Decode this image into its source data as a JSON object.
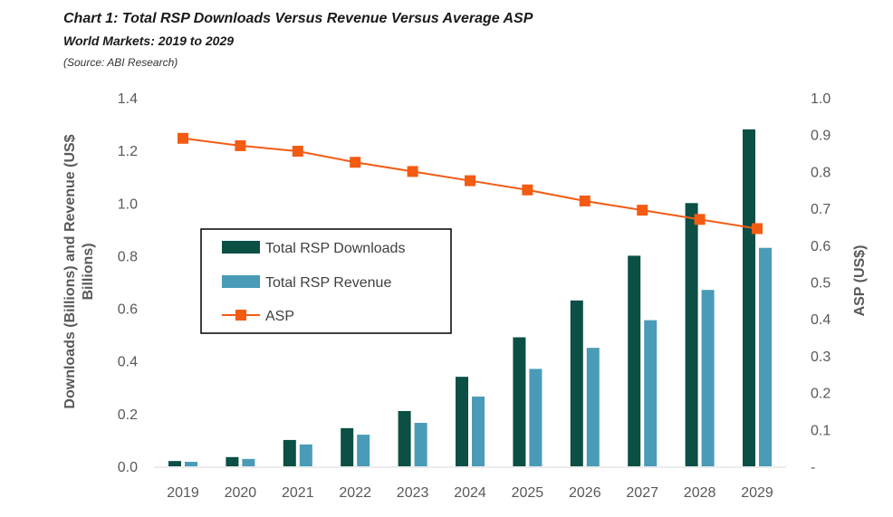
{
  "title": "Chart 1: Total RSP Downloads Versus Revenue Versus Average ASP",
  "subtitle": "World Markets: 2019 to 2029",
  "source": "(Source: ABI Research)",
  "chart_data": {
    "type": "bar",
    "categories": [
      "2019",
      "2020",
      "2021",
      "2022",
      "2023",
      "2024",
      "2025",
      "2026",
      "2027",
      "2028",
      "2029"
    ],
    "series": [
      {
        "name": "Total RSP Downloads",
        "type": "bar",
        "axis": "left",
        "color": "#0b4f45",
        "values": [
          0.02,
          0.035,
          0.1,
          0.145,
          0.21,
          0.34,
          0.49,
          0.63,
          0.8,
          1.0,
          1.28
        ]
      },
      {
        "name": "Total RSP Revenue",
        "type": "bar",
        "axis": "left",
        "color": "#4a9bb8",
        "values": [
          0.017,
          0.028,
          0.083,
          0.12,
          0.165,
          0.265,
          0.37,
          0.45,
          0.555,
          0.67,
          0.83
        ]
      },
      {
        "name": "ASP",
        "type": "line",
        "axis": "right",
        "color": "#f35b13",
        "values": [
          0.89,
          0.87,
          0.855,
          0.825,
          0.8,
          0.775,
          0.75,
          0.72,
          0.695,
          0.67,
          0.645
        ]
      }
    ],
    "ylabel": "Downloads (Billions) and Revenue (US$ Billions)",
    "y2label": "ASP (US$)",
    "ylim": [
      0,
      1.4
    ],
    "y2lim": [
      0,
      1.0
    ],
    "yticks": [
      "0.0",
      "0.2",
      "0.4",
      "0.6",
      "0.8",
      "1.0",
      "1.2",
      "1.4"
    ],
    "y2ticks": [
      "-",
      "0.1",
      "0.2",
      "0.3",
      "0.4",
      "0.5",
      "0.6",
      "0.7",
      "0.8",
      "0.9",
      "1.0"
    ],
    "grid": false,
    "legend_position": "center-left"
  }
}
